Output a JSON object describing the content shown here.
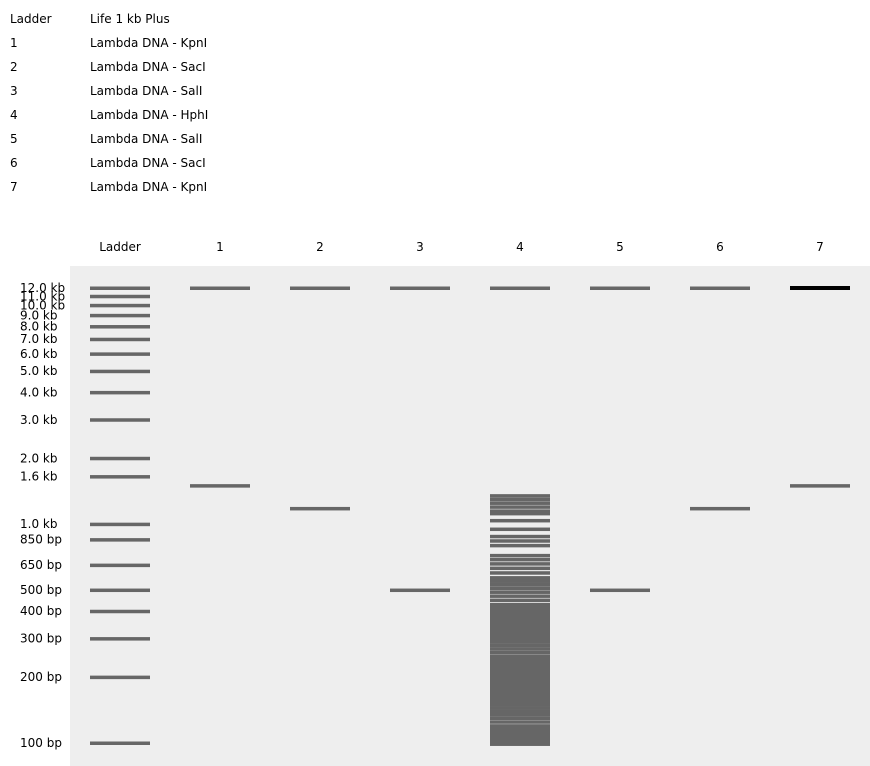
{
  "lane_table": [
    {
      "id": "Ladder",
      "desc": "Life 1 kb Plus"
    },
    {
      "id": "1",
      "desc": "Lambda DNA - KpnI"
    },
    {
      "id": "2",
      "desc": "Lambda DNA - SacI"
    },
    {
      "id": "3",
      "desc": "Lambda DNA - SalI"
    },
    {
      "id": "4",
      "desc": "Lambda DNA - HphI"
    },
    {
      "id": "5",
      "desc": "Lambda DNA - SalI"
    },
    {
      "id": "6",
      "desc": "Lambda DNA - SacI"
    },
    {
      "id": "7",
      "desc": "Lambda DNA - KpnI"
    }
  ],
  "colors": {
    "gel_background": "#eeeeee",
    "band": "#666666",
    "band_strong": "#000000"
  },
  "chart_data": {
    "type": "gel",
    "y_scale": "log",
    "y_range_bp": [
      100,
      12000
    ],
    "lanes": [
      "Ladder",
      "1",
      "2",
      "3",
      "4",
      "5",
      "6",
      "7"
    ],
    "ladder": [
      {
        "bp": 12000,
        "label": "12.0 kb"
      },
      {
        "bp": 11000,
        "label": "11.0 kb"
      },
      {
        "bp": 10000,
        "label": "10.0 kb"
      },
      {
        "bp": 9000,
        "label": "9.0 kb"
      },
      {
        "bp": 8000,
        "label": "8.0 kb"
      },
      {
        "bp": 7000,
        "label": "7.0 kb"
      },
      {
        "bp": 6000,
        "label": "6.0 kb"
      },
      {
        "bp": 5000,
        "label": "5.0 kb"
      },
      {
        "bp": 4000,
        "label": "4.0 kb"
      },
      {
        "bp": 3000,
        "label": "3.0 kb"
      },
      {
        "bp": 2000,
        "label": "2.0 kb"
      },
      {
        "bp": 1650,
        "label": "1.6 kb"
      },
      {
        "bp": 1000,
        "label": "1.0 kb"
      },
      {
        "bp": 850,
        "label": "850 bp"
      },
      {
        "bp": 650,
        "label": "650 bp"
      },
      {
        "bp": 500,
        "label": "500 bp"
      },
      {
        "bp": 400,
        "label": "400 bp"
      },
      {
        "bp": 300,
        "label": "300 bp"
      },
      {
        "bp": 200,
        "label": "200 bp"
      },
      {
        "bp": 100,
        "label": "100 bp"
      }
    ],
    "samples": [
      {
        "lane": "1",
        "bands": [
          {
            "bp": 12000
          },
          {
            "bp": 1500
          }
        ]
      },
      {
        "lane": "2",
        "bands": [
          {
            "bp": 12000
          },
          {
            "bp": 1180
          }
        ]
      },
      {
        "lane": "3",
        "bands": [
          {
            "bp": 12000
          },
          {
            "bp": 500
          }
        ]
      },
      {
        "lane": "4",
        "bands": [
          {
            "bp": 12000
          },
          {
            "bp": 1350
          },
          {
            "bp": 1300
          },
          {
            "bp": 1250
          },
          {
            "bp": 1200
          },
          {
            "bp": 1150
          },
          {
            "bp": 1120
          },
          {
            "bp": 1040
          },
          {
            "bp": 950
          },
          {
            "bp": 880
          },
          {
            "bp": 840
          },
          {
            "bp": 800
          },
          {
            "bp": 720
          },
          {
            "bp": 690
          },
          {
            "bp": 660
          },
          {
            "bp": 630
          },
          {
            "bp": 600
          },
          {
            "bp": 570
          },
          {
            "bp": 550
          },
          {
            "bp": 530
          },
          {
            "bp": 510
          },
          {
            "bp": 490
          },
          {
            "bp": 470
          },
          {
            "bp": 450
          },
          {
            "bp": 430
          },
          {
            "bp": 420
          },
          {
            "bp": 410
          },
          {
            "bp": 400
          },
          {
            "bp": 390
          },
          {
            "bp": 380
          },
          {
            "bp": 370
          },
          {
            "bp": 360
          },
          {
            "bp": 350
          },
          {
            "bp": 340
          },
          {
            "bp": 330
          },
          {
            "bp": 320
          },
          {
            "bp": 310
          },
          {
            "bp": 300
          },
          {
            "bp": 290
          },
          {
            "bp": 280
          },
          {
            "bp": 270
          },
          {
            "bp": 260
          },
          {
            "bp": 250
          },
          {
            "bp": 245
          },
          {
            "bp": 240
          },
          {
            "bp": 235
          },
          {
            "bp": 230
          },
          {
            "bp": 225
          },
          {
            "bp": 220
          },
          {
            "bp": 215
          },
          {
            "bp": 210
          },
          {
            "bp": 205
          },
          {
            "bp": 200
          },
          {
            "bp": 195
          },
          {
            "bp": 190
          },
          {
            "bp": 185
          },
          {
            "bp": 180
          },
          {
            "bp": 175
          },
          {
            "bp": 170
          },
          {
            "bp": 165
          },
          {
            "bp": 160
          },
          {
            "bp": 155
          },
          {
            "bp": 150
          },
          {
            "bp": 145
          },
          {
            "bp": 140
          },
          {
            "bp": 135
          },
          {
            "bp": 130
          },
          {
            "bp": 125
          },
          {
            "bp": 120
          },
          {
            "bp": 117
          },
          {
            "bp": 114
          },
          {
            "bp": 111
          },
          {
            "bp": 108
          },
          {
            "bp": 105
          },
          {
            "bp": 102
          },
          {
            "bp": 99
          }
        ]
      },
      {
        "lane": "5",
        "bands": [
          {
            "bp": 12000
          },
          {
            "bp": 500
          }
        ]
      },
      {
        "lane": "6",
        "bands": [
          {
            "bp": 12000
          },
          {
            "bp": 1180
          }
        ]
      },
      {
        "lane": "7",
        "bands": [
          {
            "bp": 12000,
            "intensity": "strong"
          },
          {
            "bp": 1500
          }
        ]
      }
    ]
  }
}
